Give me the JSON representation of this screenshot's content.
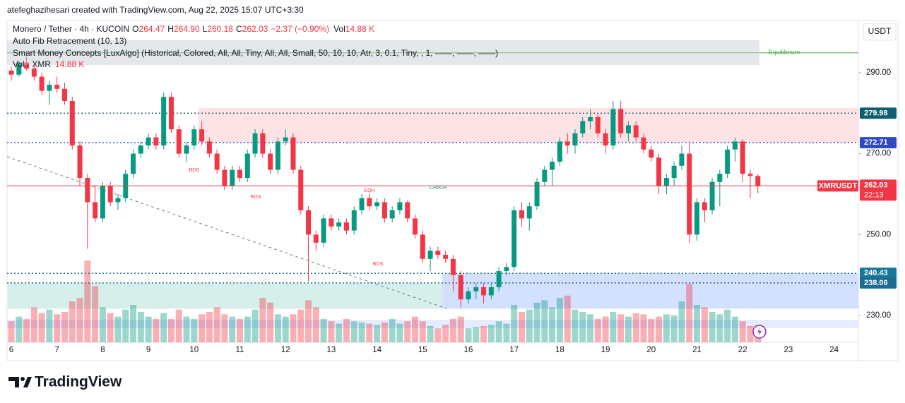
{
  "header": {
    "attribution": "atefeghazihesari created with TradingView.com, Aug 22, 2025 15:07 UTC+3:30"
  },
  "chart_data": {
    "type": "candlestick",
    "title": "Monero / Tether · 4h · KUCOIN",
    "quote": [
      {
        "key": "O",
        "value": "264.47"
      },
      {
        "key": "H",
        "value": "264.90"
      },
      {
        "key": "L",
        "value": "260.18"
      },
      {
        "key": "C",
        "value": "262.03"
      }
    ],
    "change": "−2.37 (−0.90%)",
    "volume_legend": {
      "key": "Vol",
      "value": "14.88 K"
    },
    "indicators": [
      "Auto Fib Retracement (10, 13)",
      "Smart Money Concepts [LuxAlgo] (Historical, Colored, All, All, Tiny, All, All, Small, 50, 10, 10, Atr, 3, 0.1, Tiny, , 1, ——, ——, ——)"
    ],
    "volume_title": "Vol · XMR",
    "volume_value": "14.88 K",
    "currency": "USDT",
    "symbol_tag": "XMRUSDT",
    "countdown": "22:13",
    "x_labels": [
      "6",
      "7",
      "8",
      "9",
      "10",
      "11",
      "12",
      "13",
      "14",
      "15",
      "16",
      "17",
      "18",
      "19",
      "20",
      "21",
      "22",
      "23",
      "24"
    ],
    "ylim": [
      223.4,
      302.7
    ],
    "yticks": [
      {
        "value": 230,
        "label": "230.00"
      },
      {
        "value": 250,
        "label": "250.00"
      },
      {
        "value": 270,
        "label": "270.00"
      },
      {
        "value": 290,
        "label": "290.00"
      }
    ],
    "grid": false,
    "up_color": "#089981",
    "down_color": "#f23645",
    "last_price": {
      "value": 262.03,
      "label": "262.03"
    },
    "levels": [
      {
        "value": 279.98,
        "label": "279.98",
        "color": "#0d5e6e"
      },
      {
        "value": 272.71,
        "label": "272.71",
        "color": "#2f49c6"
      },
      {
        "value": 240.43,
        "label": "240.43",
        "color": "#17789a"
      },
      {
        "value": 238.06,
        "label": "238.06",
        "color": "#1e6b93"
      }
    ],
    "equilibrium": {
      "value": 294.9,
      "label": "Equilibrium",
      "color": "#4caf50"
    },
    "zones": [
      {
        "top": 281.3,
        "bottom": 272.71,
        "start": 25,
        "color": "rgba(242,54,69,0.14)"
      },
      {
        "top": 240.43,
        "bottom": 231.7,
        "start": 57,
        "color": "rgba(41,98,255,0.2)"
      },
      {
        "top": 238.06,
        "bottom": 231.7,
        "start": 0,
        "color": "rgba(8,153,129,0.16)"
      }
    ],
    "annotations": [
      "BOS",
      "BOS",
      "BOS",
      "EQH",
      "CHoCH"
    ],
    "volume_lim": [
      0,
      275
    ],
    "volume": [
      18,
      22,
      20,
      30,
      25,
      28,
      24,
      26,
      35,
      38,
      70,
      48,
      30,
      25,
      22,
      28,
      32,
      26,
      22,
      20,
      25,
      20,
      28,
      22,
      20,
      24,
      26,
      30,
      24,
      22,
      20,
      22,
      28,
      38,
      34,
      24,
      22,
      24,
      28,
      36,
      30,
      20,
      18,
      16,
      20,
      18,
      17,
      16,
      15,
      17,
      20,
      16,
      18,
      22,
      18,
      14,
      12,
      15,
      20,
      22,
      12,
      13,
      14,
      15,
      18,
      16,
      32,
      26,
      28,
      34,
      36,
      30,
      38,
      40,
      28,
      26,
      24,
      20,
      22,
      26,
      24,
      22,
      25,
      24,
      20,
      22,
      24,
      23,
      35,
      50,
      32,
      30,
      26,
      24,
      28,
      22,
      18,
      14,
      14.88
    ],
    "candles": [
      [
        290.5,
        291.5,
        288,
        289.5
      ],
      [
        289.5,
        293,
        289,
        292.5
      ],
      [
        292.5,
        294,
        290.5,
        291
      ],
      [
        291,
        292,
        288,
        289
      ],
      [
        289,
        290,
        284.5,
        285.5
      ],
      [
        285.5,
        288,
        282,
        287
      ],
      [
        287,
        289,
        285,
        286
      ],
      [
        286,
        287.5,
        282,
        283
      ],
      [
        283,
        284,
        271,
        272
      ],
      [
        272,
        273,
        262,
        264
      ],
      [
        264,
        265,
        246.5,
        258
      ],
      [
        258,
        262,
        253,
        254
      ],
      [
        254,
        263,
        253,
        262
      ],
      [
        262,
        263,
        257,
        258
      ],
      [
        258,
        260,
        256,
        259
      ],
      [
        259,
        266,
        258,
        265
      ],
      [
        265,
        271,
        264,
        270
      ],
      [
        270,
        273,
        269,
        272
      ],
      [
        272,
        275,
        271,
        274
      ],
      [
        274,
        275,
        271,
        272
      ],
      [
        272,
        285,
        271,
        284
      ],
      [
        284,
        285,
        275,
        276
      ],
      [
        276,
        277,
        269,
        270
      ],
      [
        270,
        273,
        268,
        272
      ],
      [
        272,
        277,
        271,
        276
      ],
      [
        276,
        278,
        272,
        273
      ],
      [
        273,
        274,
        269,
        270
      ],
      [
        270,
        271,
        265,
        266
      ],
      [
        266,
        267,
        261,
        262
      ],
      [
        262,
        267,
        261,
        266
      ],
      [
        266,
        267,
        263,
        264
      ],
      [
        264,
        271,
        263,
        270
      ],
      [
        270,
        276,
        269,
        275
      ],
      [
        275,
        276,
        269,
        270
      ],
      [
        270,
        271,
        265,
        266
      ],
      [
        266,
        274,
        265,
        273
      ],
      [
        273,
        276,
        272,
        274
      ],
      [
        274,
        275,
        265,
        266
      ],
      [
        266,
        267,
        255,
        256
      ],
      [
        256,
        257,
        238.5,
        250
      ],
      [
        250,
        251,
        246,
        248
      ],
      [
        248,
        255,
        247,
        254
      ],
      [
        254,
        255,
        251,
        252
      ],
      [
        252,
        254,
        251,
        253
      ],
      [
        253,
        254,
        250,
        251
      ],
      [
        251,
        257,
        250,
        256
      ],
      [
        256,
        260,
        255,
        259
      ],
      [
        259,
        260,
        256,
        257
      ],
      [
        257,
        259,
        256,
        258
      ],
      [
        258,
        259,
        253,
        254
      ],
      [
        254,
        257,
        253,
        256
      ],
      [
        256,
        259,
        255,
        258
      ],
      [
        258,
        258.5,
        253,
        254
      ],
      [
        254,
        255,
        249,
        250
      ],
      [
        250,
        251,
        243,
        244
      ],
      [
        244,
        247,
        241,
        246
      ],
      [
        246,
        247,
        244,
        245
      ],
      [
        245,
        246,
        243,
        244
      ],
      [
        244,
        245,
        236,
        240
      ],
      [
        240,
        241,
        232,
        234
      ],
      [
        234,
        237,
        233,
        236
      ],
      [
        236,
        238,
        234,
        237
      ],
      [
        237,
        238,
        233,
        235
      ],
      [
        235,
        238,
        234,
        237
      ],
      [
        237,
        242,
        236,
        241
      ],
      [
        241,
        243,
        240,
        242
      ],
      [
        242,
        257,
        241,
        256
      ],
      [
        256,
        258,
        252,
        254
      ],
      [
        254,
        258,
        251,
        257
      ],
      [
        257,
        264,
        256,
        263
      ],
      [
        263,
        267,
        262,
        266
      ],
      [
        266,
        269,
        262,
        268
      ],
      [
        268,
        274,
        267,
        273
      ],
      [
        273,
        275,
        270,
        272
      ],
      [
        272,
        276,
        270,
        275
      ],
      [
        275,
        279,
        274,
        278
      ],
      [
        278,
        281,
        276,
        279
      ],
      [
        279,
        280,
        274,
        275
      ],
      [
        275,
        276,
        270,
        272
      ],
      [
        272,
        283,
        271,
        281
      ],
      [
        281,
        283,
        274,
        275
      ],
      [
        275,
        278,
        273,
        277
      ],
      [
        277,
        278,
        273,
        274
      ],
      [
        274,
        275,
        270,
        271
      ],
      [
        271,
        272,
        268,
        269
      ],
      [
        269,
        270,
        260,
        262
      ],
      [
        262,
        265,
        260,
        264
      ],
      [
        264,
        268,
        262,
        267
      ],
      [
        267,
        272,
        266,
        270
      ],
      [
        270,
        273,
        248,
        250
      ],
      [
        250,
        259,
        248.5,
        258
      ],
      [
        258,
        259,
        253,
        256
      ],
      [
        256,
        264,
        255,
        263
      ],
      [
        263,
        266,
        257,
        265
      ],
      [
        265,
        272,
        264,
        271
      ],
      [
        271,
        274,
        268,
        273
      ],
      [
        273,
        273.5,
        263,
        265
      ],
      [
        265,
        266,
        259,
        264.47
      ],
      [
        264.47,
        264.9,
        260.18,
        262.03
      ]
    ]
  },
  "brand": "TradingView"
}
